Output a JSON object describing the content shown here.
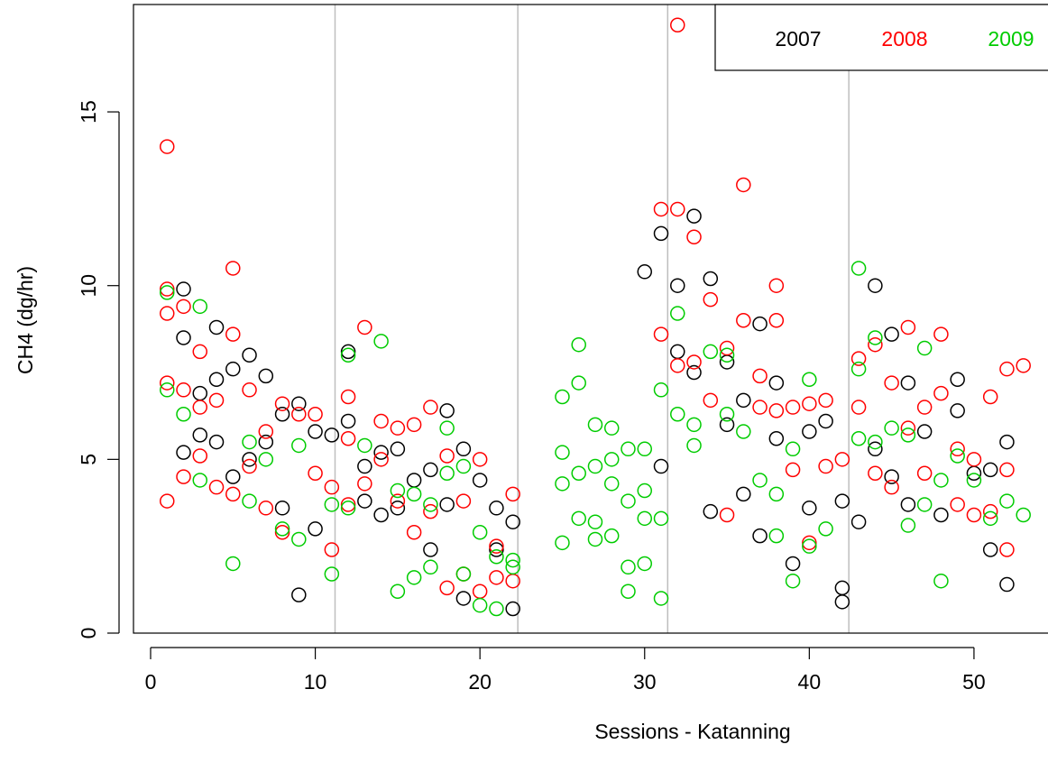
{
  "chart_data": {
    "type": "scatter",
    "x_label": "Sessions - Katanning",
    "y_label": "CH4 (dg/hr)",
    "xlim": [
      -1.04,
      54.44
    ],
    "ylim": [
      0,
      18.09
    ],
    "xticks": [
      0,
      10,
      20,
      30,
      40,
      50
    ],
    "yticks": [
      0,
      5,
      10,
      15
    ],
    "vlines": [
      11.2,
      22.3,
      31.4,
      42.4
    ],
    "legend": "top-right",
    "series": [
      {
        "name": "2007",
        "color": "#000000",
        "x": [
          2,
          2,
          2,
          3,
          3,
          4,
          4,
          4,
          5,
          5,
          6,
          6,
          7,
          7,
          8,
          8,
          9,
          9,
          10,
          10,
          11,
          12,
          12,
          13,
          13,
          14,
          14,
          15,
          15,
          16,
          17,
          17,
          18,
          18,
          19,
          19,
          20,
          21,
          21,
          22,
          22,
          30,
          31,
          31,
          32,
          32,
          33,
          33,
          34,
          34,
          35,
          35,
          36,
          36,
          37,
          37,
          38,
          38,
          39,
          40,
          40,
          41,
          42,
          42,
          42,
          43,
          44,
          44,
          45,
          45,
          46,
          46,
          47,
          48,
          49,
          49,
          50,
          51,
          51,
          52,
          52
        ],
        "y": [
          9.9,
          8.5,
          5.2,
          6.9,
          5.7,
          8.8,
          7.3,
          5.5,
          7.6,
          4.5,
          8.0,
          5.0,
          7.4,
          5.5,
          6.3,
          3.6,
          6.6,
          1.1,
          5.8,
          3.0,
          5.7,
          8.1,
          6.1,
          4.8,
          3.8,
          5.2,
          3.4,
          5.3,
          3.6,
          4.4,
          4.7,
          2.4,
          6.4,
          3.7,
          5.3,
          1.0,
          4.4,
          3.6,
          2.4,
          3.2,
          0.7,
          10.4,
          11.5,
          4.8,
          10.0,
          8.1,
          12.0,
          7.5,
          10.2,
          3.5,
          7.8,
          6.0,
          6.7,
          4.0,
          8.9,
          2.8,
          7.2,
          5.6,
          2.0,
          5.8,
          3.6,
          6.1,
          3.8,
          1.3,
          0.9,
          3.2,
          10.0,
          5.3,
          8.6,
          4.5,
          7.2,
          3.7,
          5.8,
          3.4,
          7.3,
          6.4,
          4.6,
          4.7,
          2.4,
          5.5,
          1.4
        ]
      },
      {
        "name": "2008",
        "color": "#ff0000",
        "x": [
          1,
          1,
          1,
          1,
          1,
          2,
          2,
          2,
          3,
          3,
          3,
          4,
          4,
          5,
          5,
          5,
          6,
          6,
          7,
          7,
          8,
          8,
          9,
          10,
          10,
          11,
          11,
          12,
          12,
          12,
          13,
          13,
          14,
          14,
          15,
          15,
          16,
          16,
          17,
          17,
          18,
          18,
          19,
          19,
          20,
          20,
          21,
          21,
          22,
          22,
          31,
          31,
          32,
          32,
          32,
          33,
          33,
          34,
          34,
          35,
          35,
          36,
          36,
          37,
          37,
          38,
          38,
          38,
          39,
          39,
          40,
          40,
          41,
          41,
          42,
          43,
          43,
          44,
          44,
          45,
          45,
          46,
          46,
          47,
          47,
          48,
          48,
          49,
          49,
          50,
          50,
          51,
          51,
          52,
          52,
          52,
          53
        ],
        "y": [
          14.0,
          9.9,
          9.2,
          7.2,
          3.8,
          9.4,
          7.0,
          4.5,
          8.1,
          6.5,
          5.1,
          6.7,
          4.2,
          10.5,
          8.6,
          4.0,
          7.0,
          4.8,
          5.8,
          3.6,
          6.6,
          2.9,
          6.3,
          6.3,
          4.6,
          4.2,
          2.4,
          6.8,
          5.6,
          3.7,
          8.8,
          4.3,
          6.1,
          5.0,
          5.9,
          3.8,
          6.0,
          2.9,
          6.5,
          3.5,
          5.1,
          1.3,
          3.8,
          1.7,
          5.0,
          1.2,
          2.5,
          1.6,
          4.0,
          1.5,
          12.2,
          8.6,
          17.5,
          12.2,
          7.7,
          11.4,
          7.8,
          9.6,
          6.7,
          8.2,
          3.4,
          12.9,
          9.0,
          7.4,
          6.5,
          10.0,
          9.0,
          6.4,
          6.5,
          4.7,
          6.6,
          2.6,
          6.7,
          4.8,
          5.0,
          7.9,
          6.5,
          8.3,
          4.6,
          7.2,
          4.2,
          8.8,
          5.9,
          6.5,
          4.6,
          8.6,
          6.9,
          5.3,
          3.7,
          5.0,
          3.4,
          6.8,
          3.5,
          7.6,
          4.7,
          2.4,
          7.7
        ]
      },
      {
        "name": "2009",
        "color": "#00cc00",
        "x": [
          1,
          1,
          2,
          3,
          3,
          5,
          6,
          6,
          7,
          8,
          9,
          9,
          11,
          11,
          12,
          12,
          13,
          14,
          15,
          15,
          16,
          16,
          17,
          17,
          18,
          18,
          19,
          19,
          20,
          20,
          21,
          21,
          22,
          22,
          25,
          25,
          25,
          25,
          26,
          26,
          26,
          26,
          27,
          27,
          27,
          27,
          28,
          28,
          28,
          28,
          29,
          29,
          29,
          29,
          30,
          30,
          30,
          30,
          31,
          31,
          31,
          32,
          32,
          33,
          33,
          34,
          35,
          35,
          36,
          37,
          38,
          38,
          39,
          39,
          40,
          40,
          41,
          43,
          43,
          43,
          44,
          44,
          45,
          46,
          46,
          47,
          47,
          48,
          48,
          49,
          50,
          51,
          52,
          53
        ],
        "y": [
          9.8,
          7.0,
          6.3,
          9.4,
          4.4,
          2.0,
          5.5,
          3.8,
          5.0,
          3.0,
          5.4,
          2.7,
          3.7,
          1.7,
          8.0,
          3.6,
          5.4,
          8.4,
          4.1,
          1.2,
          4.0,
          1.6,
          3.7,
          1.9,
          5.9,
          4.6,
          4.8,
          1.7,
          2.9,
          0.8,
          2.2,
          0.7,
          2.1,
          1.9,
          6.8,
          5.2,
          4.3,
          2.6,
          8.3,
          7.2,
          4.6,
          3.3,
          6.0,
          4.8,
          3.2,
          2.7,
          5.9,
          5.0,
          4.3,
          2.8,
          5.3,
          3.8,
          1.9,
          1.2,
          5.3,
          4.1,
          3.3,
          2.0,
          7.0,
          3.3,
          1.0,
          9.2,
          6.3,
          6.0,
          5.4,
          8.1,
          8.0,
          6.3,
          5.8,
          4.4,
          4.0,
          2.8,
          5.3,
          1.5,
          7.3,
          2.5,
          3.0,
          10.5,
          7.6,
          5.6,
          8.5,
          5.5,
          5.9,
          5.7,
          3.1,
          8.2,
          3.7,
          4.4,
          1.5,
          5.1,
          4.4,
          3.3,
          3.8,
          3.4
        ]
      }
    ]
  }
}
